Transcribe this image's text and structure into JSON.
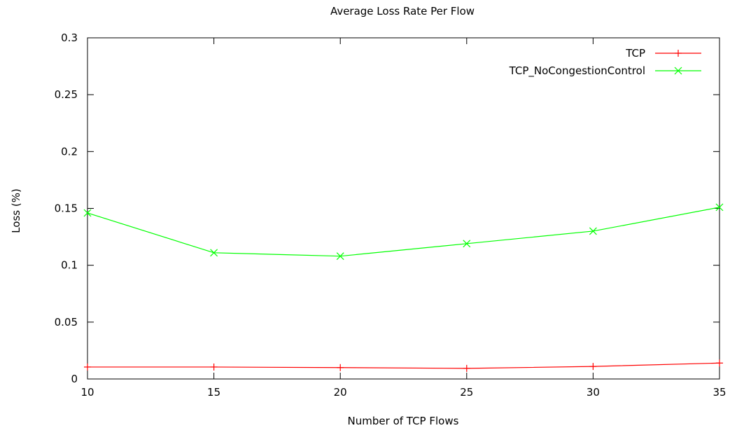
{
  "chart_data": {
    "type": "line",
    "title": "Average Loss Rate Per Flow",
    "xlabel": "Number of TCP Flows",
    "ylabel": "Loss (%)",
    "xlim": [
      10,
      35
    ],
    "ylim": [
      0,
      0.3
    ],
    "x_ticks": [
      10,
      15,
      20,
      25,
      30,
      35
    ],
    "y_ticks": [
      0,
      0.05,
      0.1,
      0.15,
      0.2,
      0.25,
      0.3
    ],
    "y_tick_labels": [
      "0",
      "0.05",
      "0.1",
      "0.15",
      "0.2",
      "0.25",
      "0.3"
    ],
    "x_tick_labels": [
      "10",
      "15",
      "20",
      "25",
      "30",
      "35"
    ],
    "grid": false,
    "legend_position": "top-right",
    "series": [
      {
        "name": "TCP",
        "color": "#ff0000",
        "marker": "plus",
        "x": [
          10,
          15,
          20,
          25,
          30,
          35
        ],
        "values": [
          0.0105,
          0.0105,
          0.01,
          0.0093,
          0.011,
          0.014
        ]
      },
      {
        "name": "TCP_NoCongestionControl",
        "color": "#00ff00",
        "marker": "cross",
        "x": [
          10,
          15,
          20,
          25,
          30,
          35
        ],
        "values": [
          0.146,
          0.111,
          0.108,
          0.119,
          0.13,
          0.151
        ]
      }
    ]
  }
}
